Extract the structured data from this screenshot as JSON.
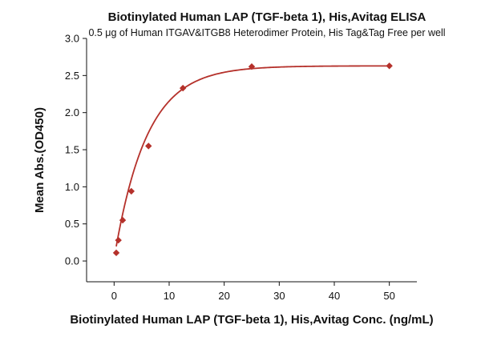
{
  "chart_data": {
    "type": "scatter",
    "title": "Biotinylated Human LAP (TGF-beta 1), His,Avitag ELISA",
    "subtitle": "0.5 μg of Human ITGAV&ITGB8 Heterodimer Protein, His Tag&Tag Free per well",
    "xlabel": "Biotinylated Human LAP (TGF-beta 1), His,Avitag Conc. (ng/mL)",
    "ylabel": "Mean Abs.(OD450)",
    "xlim": [
      -5,
      55
    ],
    "ylim": [
      -0.28,
      3.0
    ],
    "xticks": [
      "0",
      "10",
      "20",
      "30",
      "40",
      "50"
    ],
    "yticks": [
      "0.0",
      "0.5",
      "1.0",
      "1.5",
      "2.0",
      "2.5",
      "3.0"
    ],
    "grid": false,
    "series": [
      {
        "color": "#b5312b",
        "marker": "diamond",
        "x": [
          0.39,
          0.78,
          1.56,
          3.13,
          6.25,
          12.5,
          25,
          50
        ],
        "y": [
          0.11,
          0.28,
          0.55,
          0.94,
          1.55,
          2.33,
          2.62,
          2.63
        ],
        "fit": "sigmoidal"
      }
    ]
  }
}
